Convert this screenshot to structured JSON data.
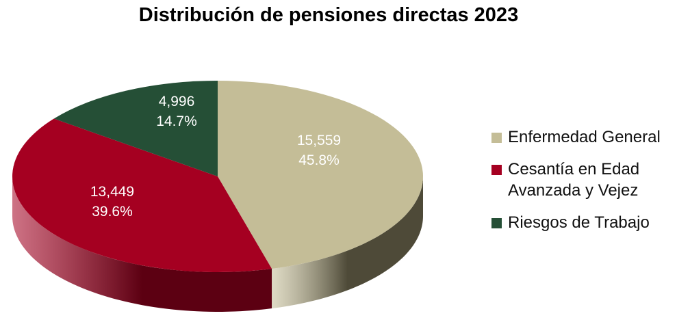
{
  "chart_data": {
    "type": "pie",
    "title": "Distribución de pensiones directas 2023",
    "slices": [
      {
        "name": "Enfermedad General",
        "value": 15559,
        "value_label": "15,559",
        "percent_label": "45.8%",
        "percent": 45.8,
        "color": "#C4BD97",
        "side_color": "#4E4A38"
      },
      {
        "name": "Cesantía en Edad Avanzada y Vejez",
        "value": 13449,
        "value_label": "13,449",
        "percent_label": "39.6%",
        "percent": 39.6,
        "color": "#A50021",
        "side_color": "#5C0012"
      },
      {
        "name": "Riesgos de Trabajo",
        "value": 4996,
        "value_label": "4,996",
        "percent_label": "14.7%",
        "percent": 14.7,
        "color": "#254F36",
        "side_color": "#14301F"
      }
    ],
    "legend_position": "right",
    "style": "3d"
  },
  "legend": {
    "items": [
      {
        "label": "Enfermedad General",
        "color": "#C4BD97"
      },
      {
        "label": "Cesantía en Edad Avanzada y Vejez",
        "color": "#A50021"
      },
      {
        "label": "Riesgos de Trabajo",
        "color": "#254F36"
      }
    ]
  }
}
